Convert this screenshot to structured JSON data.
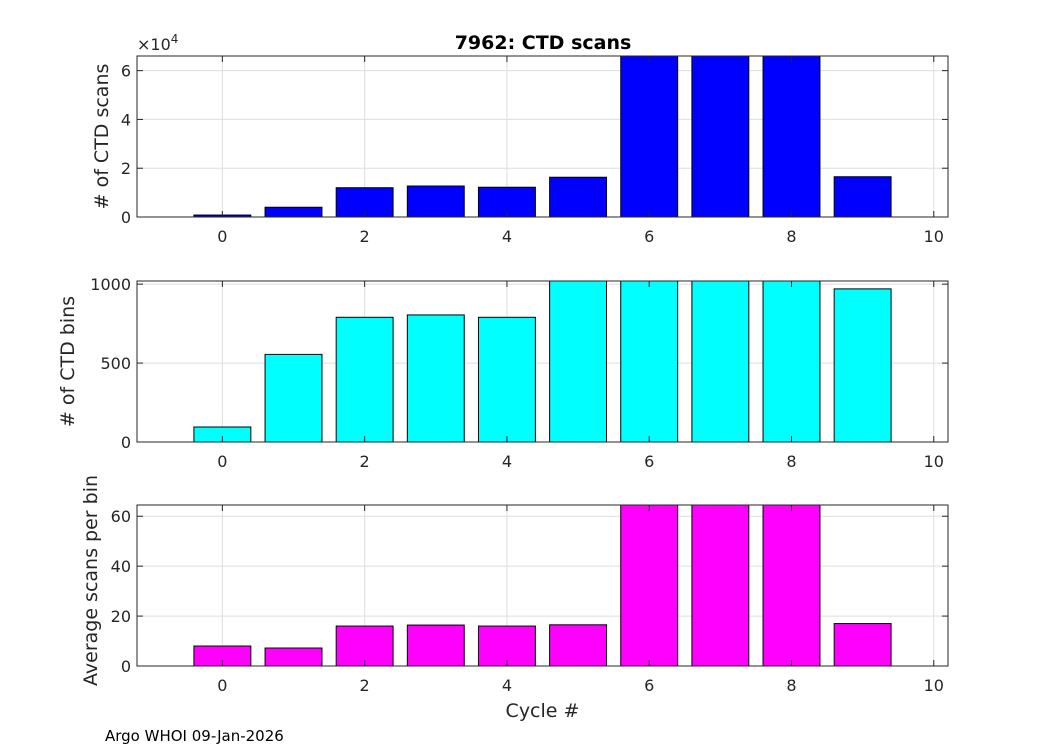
{
  "title": "7962: CTD scans",
  "footer": "Argo WHOI 09-Jan-2026",
  "chart_data": [
    {
      "type": "bar",
      "categories": [
        0,
        1,
        2,
        3,
        4,
        5,
        6,
        7,
        8,
        9
      ],
      "values": [
        0.08,
        0.4,
        1.2,
        1.27,
        1.22,
        1.63,
        6.6,
        6.6,
        6.6,
        1.65
      ],
      "ylabel": "# of CTD scans",
      "xlabel": "",
      "ylim": [
        0,
        6.6
      ],
      "xlim": [
        -1.2,
        10.2
      ],
      "yticks": [
        0,
        2,
        4,
        6
      ],
      "xticks": [
        0,
        2,
        4,
        6,
        8,
        10
      ],
      "exponent_base": "×10",
      "exponent_power": "4",
      "color": "#0000ff",
      "grid": true
    },
    {
      "type": "bar",
      "categories": [
        0,
        1,
        2,
        3,
        4,
        5,
        6,
        7,
        8,
        9
      ],
      "values": [
        95,
        555,
        790,
        805,
        790,
        1020,
        1020,
        1020,
        1020,
        970
      ],
      "ylabel": "# of CTD bins",
      "xlabel": "",
      "ylim": [
        0,
        1020
      ],
      "xlim": [
        -1.2,
        10.2
      ],
      "yticks": [
        0,
        500,
        1000
      ],
      "xticks": [
        0,
        2,
        4,
        6,
        8,
        10
      ],
      "color": "#00ffff",
      "grid": true
    },
    {
      "type": "bar",
      "categories": [
        0,
        1,
        2,
        3,
        4,
        5,
        6,
        7,
        8,
        9
      ],
      "values": [
        8,
        7.2,
        16,
        16.4,
        16,
        16.5,
        64.5,
        64.5,
        64.5,
        17
      ],
      "ylabel": "Average scans per bin",
      "xlabel": "Cycle #",
      "ylim": [
        0,
        64.5
      ],
      "xlim": [
        -1.2,
        10.2
      ],
      "yticks": [
        0,
        20,
        40,
        60
      ],
      "xticks": [
        0,
        2,
        4,
        6,
        8,
        10
      ],
      "color": "#ff00ff",
      "grid": true
    }
  ]
}
